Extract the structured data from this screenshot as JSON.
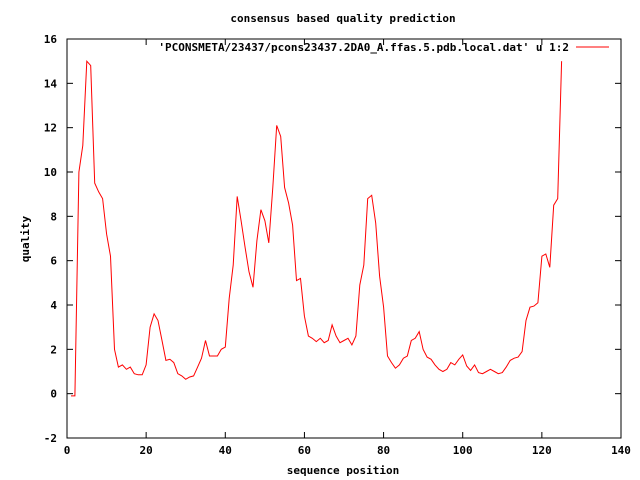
{
  "chart_data": {
    "type": "line",
    "title": "consensus based quality prediction",
    "xlabel": "sequence position",
    "ylabel": "quality",
    "xlim": [
      0,
      140
    ],
    "ylim": [
      -2,
      16
    ],
    "xticks": [
      "0",
      "20",
      "40",
      "60",
      "80",
      "100",
      "120",
      "140"
    ],
    "yticks": [
      "-2",
      "0",
      "2",
      "4",
      "6",
      "8",
      "10",
      "12",
      "14",
      "16"
    ],
    "grid": false,
    "legend_position": "top-right",
    "series": [
      {
        "name": "'PCONSMETA/23437/pcons23437.2DA0_A.ffas.5.pdb.local.dat' u 1:2",
        "color": "#ff0000",
        "x": [
          1,
          2,
          3,
          4,
          5,
          6,
          7,
          8,
          9,
          10,
          11,
          12,
          13,
          14,
          15,
          16,
          17,
          18,
          19,
          20,
          21,
          22,
          23,
          24,
          25,
          26,
          27,
          28,
          29,
          30,
          31,
          32,
          33,
          34,
          35,
          36,
          37,
          38,
          39,
          40,
          41,
          42,
          43,
          44,
          45,
          46,
          47,
          48,
          49,
          50,
          51,
          52,
          53,
          54,
          55,
          56,
          57,
          58,
          59,
          60,
          61,
          62,
          63,
          64,
          65,
          66,
          67,
          68,
          69,
          70,
          71,
          72,
          73,
          74,
          75,
          76,
          77,
          78,
          79,
          80,
          81,
          82,
          83,
          84,
          85,
          86,
          87,
          88,
          89,
          90,
          91,
          92,
          93,
          94,
          95,
          96,
          97,
          98,
          99,
          100,
          101,
          102,
          103,
          104,
          105,
          106,
          107,
          108,
          109,
          110,
          111,
          112,
          113,
          114,
          115,
          116,
          117,
          118,
          119,
          120,
          121,
          122,
          123,
          124,
          125
        ],
        "y": [
          -0.1,
          -0.1,
          10.0,
          11.2,
          15.0,
          14.8,
          9.5,
          9.1,
          8.8,
          7.2,
          6.2,
          2.0,
          1.2,
          1.3,
          1.1,
          1.2,
          0.9,
          0.85,
          0.85,
          1.3,
          3.0,
          3.6,
          3.3,
          2.4,
          1.5,
          1.55,
          1.4,
          0.9,
          0.8,
          0.65,
          0.75,
          0.8,
          1.2,
          1.6,
          2.4,
          1.7,
          1.7,
          1.7,
          2.0,
          2.1,
          4.3,
          5.8,
          8.9,
          7.8,
          6.6,
          5.5,
          4.8,
          6.9,
          8.3,
          7.8,
          6.8,
          9.3,
          12.1,
          11.6,
          9.3,
          8.6,
          7.6,
          5.1,
          5.2,
          3.5,
          2.6,
          2.5,
          2.35,
          2.5,
          2.3,
          2.4,
          3.1,
          2.6,
          2.3,
          2.4,
          2.5,
          2.2,
          2.6,
          4.9,
          5.8,
          8.8,
          8.95,
          7.7,
          5.3,
          3.9,
          1.7,
          1.4,
          1.15,
          1.3,
          1.6,
          1.7,
          2.4,
          2.5,
          2.8,
          2.0,
          1.65,
          1.55,
          1.3,
          1.1,
          1.0,
          1.1,
          1.4,
          1.3,
          1.55,
          1.75,
          1.25,
          1.05,
          1.3,
          0.95,
          0.9,
          1.0,
          1.1,
          1.0,
          0.9,
          0.95,
          1.2,
          1.5,
          1.6,
          1.65,
          1.9,
          3.3,
          3.9,
          3.95,
          4.1,
          6.2,
          6.3,
          5.7,
          8.5,
          8.8,
          15.0
        ]
      }
    ]
  }
}
